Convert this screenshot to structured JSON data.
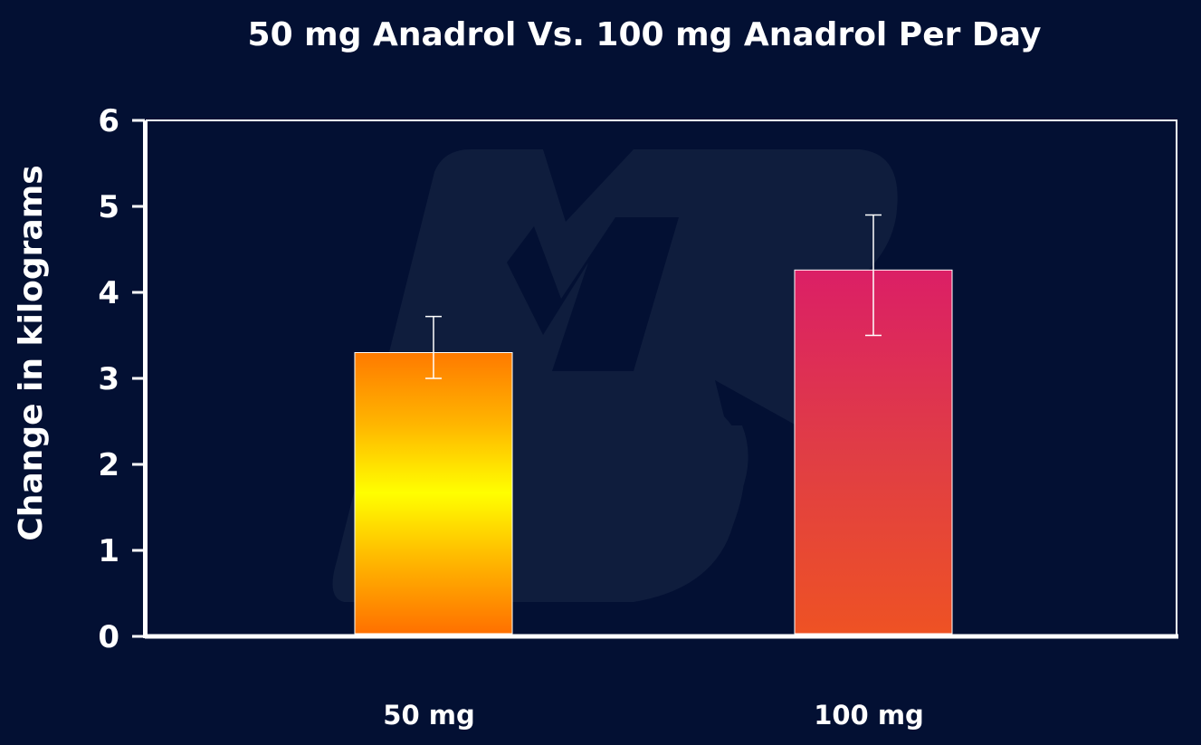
{
  "chart_data": {
    "type": "bar",
    "title": "50 mg Anadrol Vs. 100 mg Anadrol Per Day",
    "xlabel": "",
    "ylabel": "Change in kilograms",
    "categories": [
      "50 mg",
      "100 mg"
    ],
    "values": [
      3.3,
      4.26
    ],
    "error_low": [
      3.0,
      3.5
    ],
    "error_high": [
      3.72,
      4.9
    ],
    "ylim": [
      0,
      6
    ],
    "yticks": [
      "0",
      "1",
      "2",
      "3",
      "4",
      "5",
      "6"
    ],
    "grid": false,
    "legend": "none",
    "colors": {
      "background": "#031033",
      "bar_50mg_gradient": [
        "#ff7a00",
        "#ffb400",
        "#ffff00",
        "#ffb400",
        "#ff7000"
      ],
      "bar_100mg_gradient": [
        "#db1f66",
        "#e03d45",
        "#ee5224"
      ],
      "axis": "#ffffff",
      "watermark": "#0f1d3d"
    }
  }
}
